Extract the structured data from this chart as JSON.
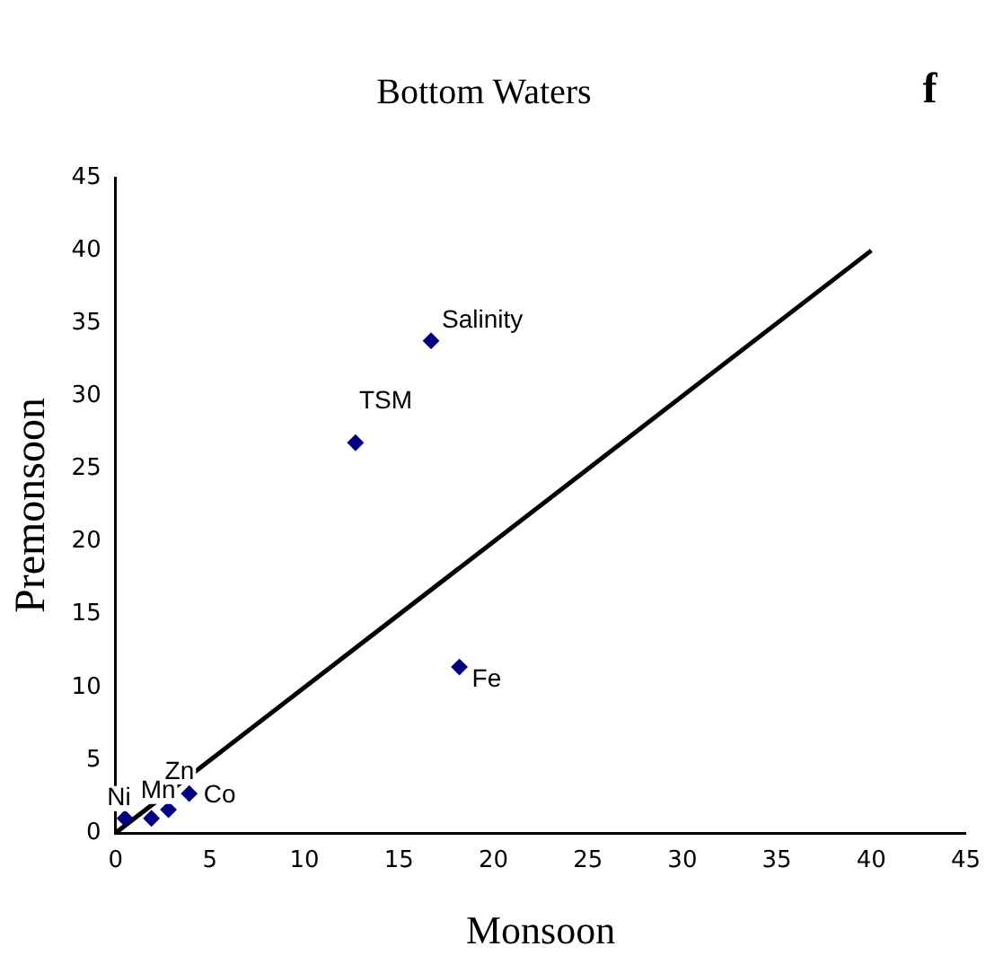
{
  "chart_data": {
    "type": "scatter",
    "title": "Bottom Waters",
    "xlabel": "Monsoon",
    "ylabel": "Premonsoon",
    "xlim": [
      0,
      45
    ],
    "xticks": [
      0,
      5,
      10,
      15,
      20,
      25,
      30,
      35,
      40,
      45
    ],
    "ylim": [
      0,
      45
    ],
    "yticks": [
      0,
      5,
      10,
      15,
      20,
      25,
      30,
      35,
      40,
      45
    ],
    "grid": false,
    "legend": false,
    "marker": "diamond",
    "series": [
      {
        "color": "#000080",
        "x": [
          0.5,
          1.9,
          2.8,
          3.9,
          12.7,
          16.7,
          18.2
        ],
        "values": [
          1.0,
          1.0,
          1.6,
          2.7,
          26.8,
          33.8,
          11.4
        ]
      },
      {
        "type": "line",
        "color": "#000000",
        "x": [
          0,
          40
        ],
        "values": [
          0,
          40
        ],
        "marker": "none",
        "line_style": "solid"
      }
    ],
    "annotations": [
      "f",
      {
        "text": "Ni",
        "x": 0.5,
        "y": 1.0
      },
      {
        "text": "Mn",
        "x": 1.9,
        "y": 1.0
      },
      {
        "text": "Zn",
        "x": 2.8,
        "y": 1.6
      },
      {
        "text": "Co",
        "x": 3.9,
        "y": 2.7
      },
      {
        "text": "TSM",
        "x": 12.7,
        "y": 26.8
      },
      {
        "text": "Salinity",
        "x": 16.7,
        "y": 33.8
      },
      {
        "text": "Fe",
        "x": 18.2,
        "y": 11.4
      }
    ]
  }
}
